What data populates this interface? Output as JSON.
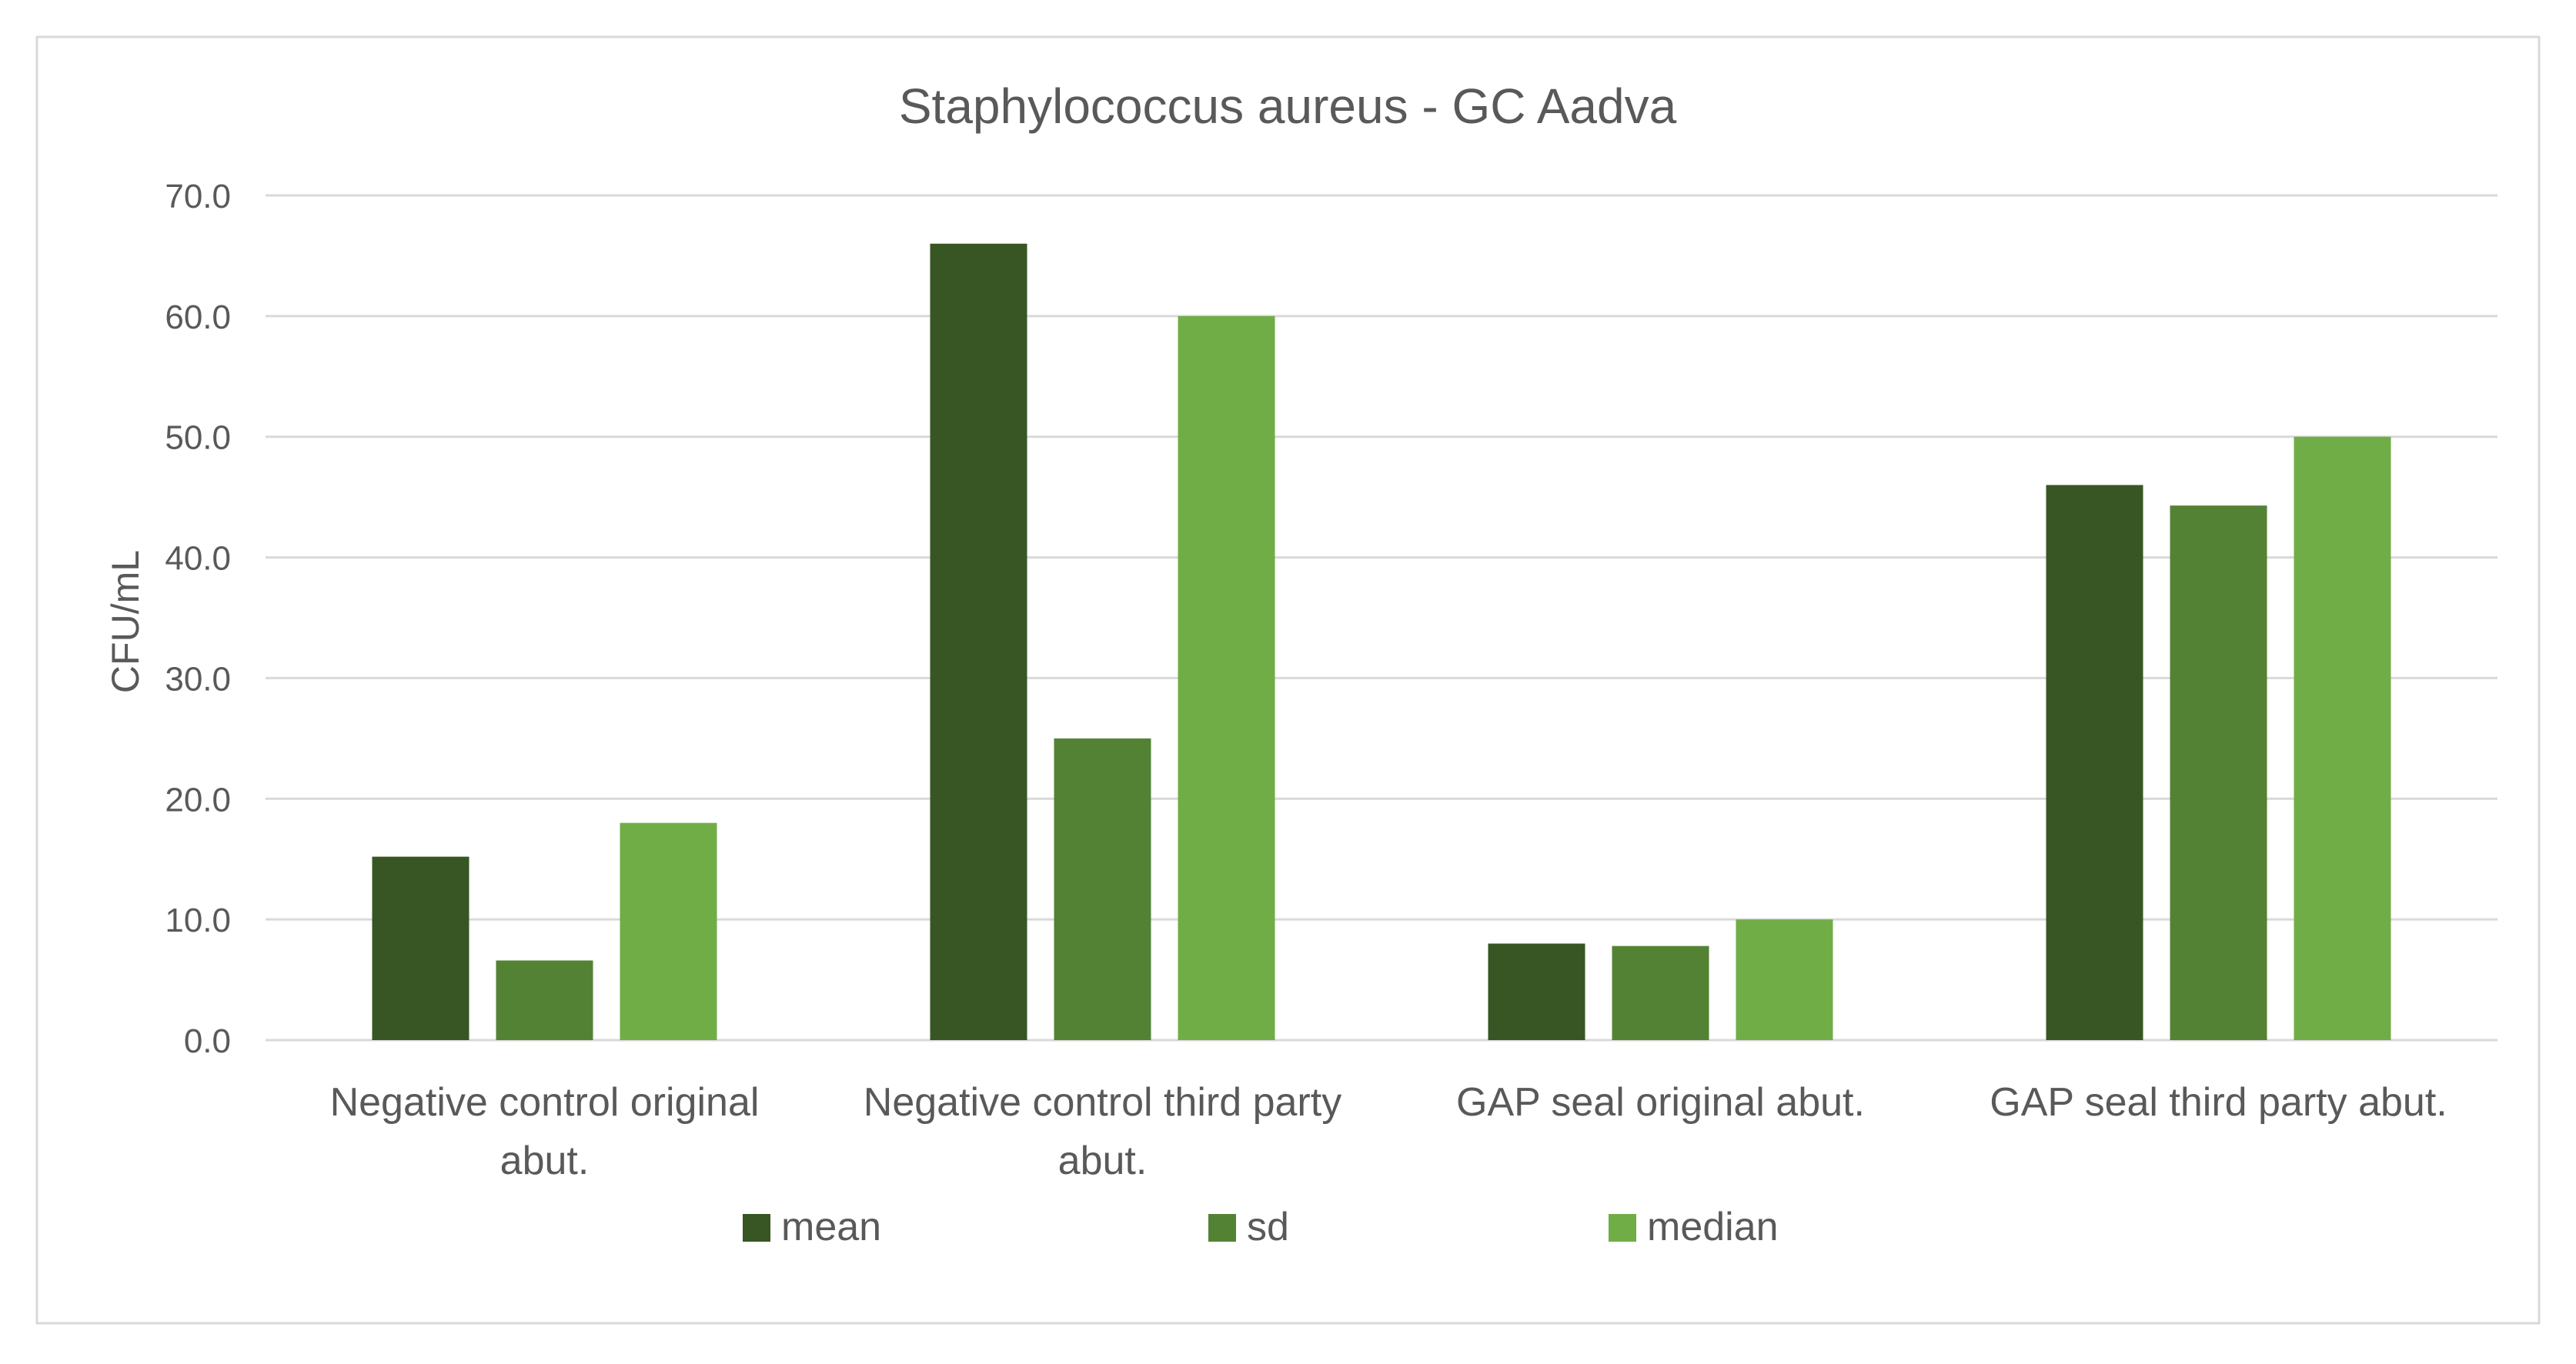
{
  "chart_data": {
    "type": "bar",
    "title": "Staphylococcus aureus -  GC Aadva",
    "xlabel": "",
    "ylabel": "CFU/mL",
    "ylim": [
      0,
      70
    ],
    "yticks": [
      0,
      10,
      20,
      30,
      40,
      50,
      60,
      70
    ],
    "ytick_labels": [
      "0.0",
      "10.0",
      "20.0",
      "30.0",
      "40.0",
      "50.0",
      "60.0",
      "70.0"
    ],
    "grid": true,
    "legend_position": "bottom",
    "categories": [
      [
        "Negative control original",
        "abut."
      ],
      [
        "Negative control third party",
        "abut."
      ],
      [
        "GAP seal original abut."
      ],
      [
        "GAP seal third party abut."
      ]
    ],
    "series": [
      {
        "name": "mean",
        "color": "#375623",
        "values": [
          15.2,
          66.0,
          8.0,
          46.0
        ]
      },
      {
        "name": "sd",
        "color": "#548235",
        "values": [
          6.6,
          25.0,
          7.8,
          44.3
        ]
      },
      {
        "name": "median",
        "color": "#70AD47",
        "values": [
          18.0,
          60.0,
          10.0,
          50.0
        ]
      }
    ]
  }
}
